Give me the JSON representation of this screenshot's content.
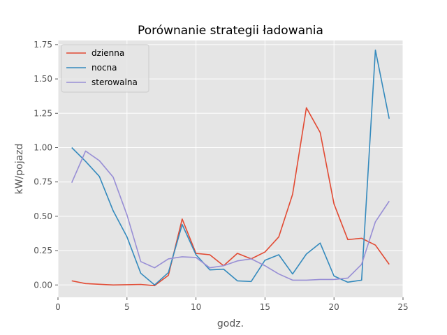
{
  "chart_data": {
    "type": "line",
    "title": "Porównanie strategii ładowania",
    "xlabel": "godz.",
    "ylabel": "kW/pojazd",
    "xlim": [
      0,
      25
    ],
    "ylim": [
      -0.09,
      1.78
    ],
    "xticks": [
      0,
      5,
      10,
      15,
      20,
      25
    ],
    "yticks": [
      0.0,
      0.25,
      0.5,
      0.75,
      1.0,
      1.25,
      1.5,
      1.75
    ],
    "ytick_labels": [
      "0.00",
      "0.25",
      "0.50",
      "0.75",
      "1.00",
      "1.25",
      "1.50",
      "1.75"
    ],
    "xtick_labels": [
      "0",
      "5",
      "10",
      "15",
      "20",
      "25"
    ],
    "grid": true,
    "legend_position": "top-left",
    "x": [
      1,
      2,
      3,
      4,
      5,
      6,
      7,
      8,
      9,
      10,
      11,
      12,
      13,
      14,
      15,
      16,
      17,
      18,
      19,
      20,
      21,
      22,
      23,
      24
    ],
    "series": [
      {
        "name": "dzienna",
        "color": "#e24a33",
        "values": [
          0.03,
          0.01,
          0.005,
          0.0,
          0.002,
          0.004,
          -0.005,
          0.07,
          0.48,
          0.23,
          0.22,
          0.14,
          0.23,
          0.19,
          0.24,
          0.35,
          0.66,
          1.29,
          1.11,
          0.59,
          0.33,
          0.34,
          0.29,
          0.15
        ]
      },
      {
        "name": "nocna",
        "color": "#348abd",
        "values": [
          1.0,
          0.9,
          0.79,
          0.54,
          0.35,
          0.085,
          0.0,
          0.09,
          0.44,
          0.22,
          0.11,
          0.115,
          0.03,
          0.025,
          0.18,
          0.22,
          0.08,
          0.225,
          0.305,
          0.065,
          0.02,
          0.035,
          1.71,
          1.21
        ]
      },
      {
        "name": "sterowalna",
        "color": "#988ed5",
        "values": [
          0.745,
          0.975,
          0.905,
          0.785,
          0.51,
          0.17,
          0.125,
          0.19,
          0.205,
          0.2,
          0.125,
          0.14,
          0.175,
          0.19,
          0.14,
          0.08,
          0.035,
          0.035,
          0.04,
          0.04,
          0.05,
          0.15,
          0.46,
          0.61
        ]
      }
    ]
  }
}
